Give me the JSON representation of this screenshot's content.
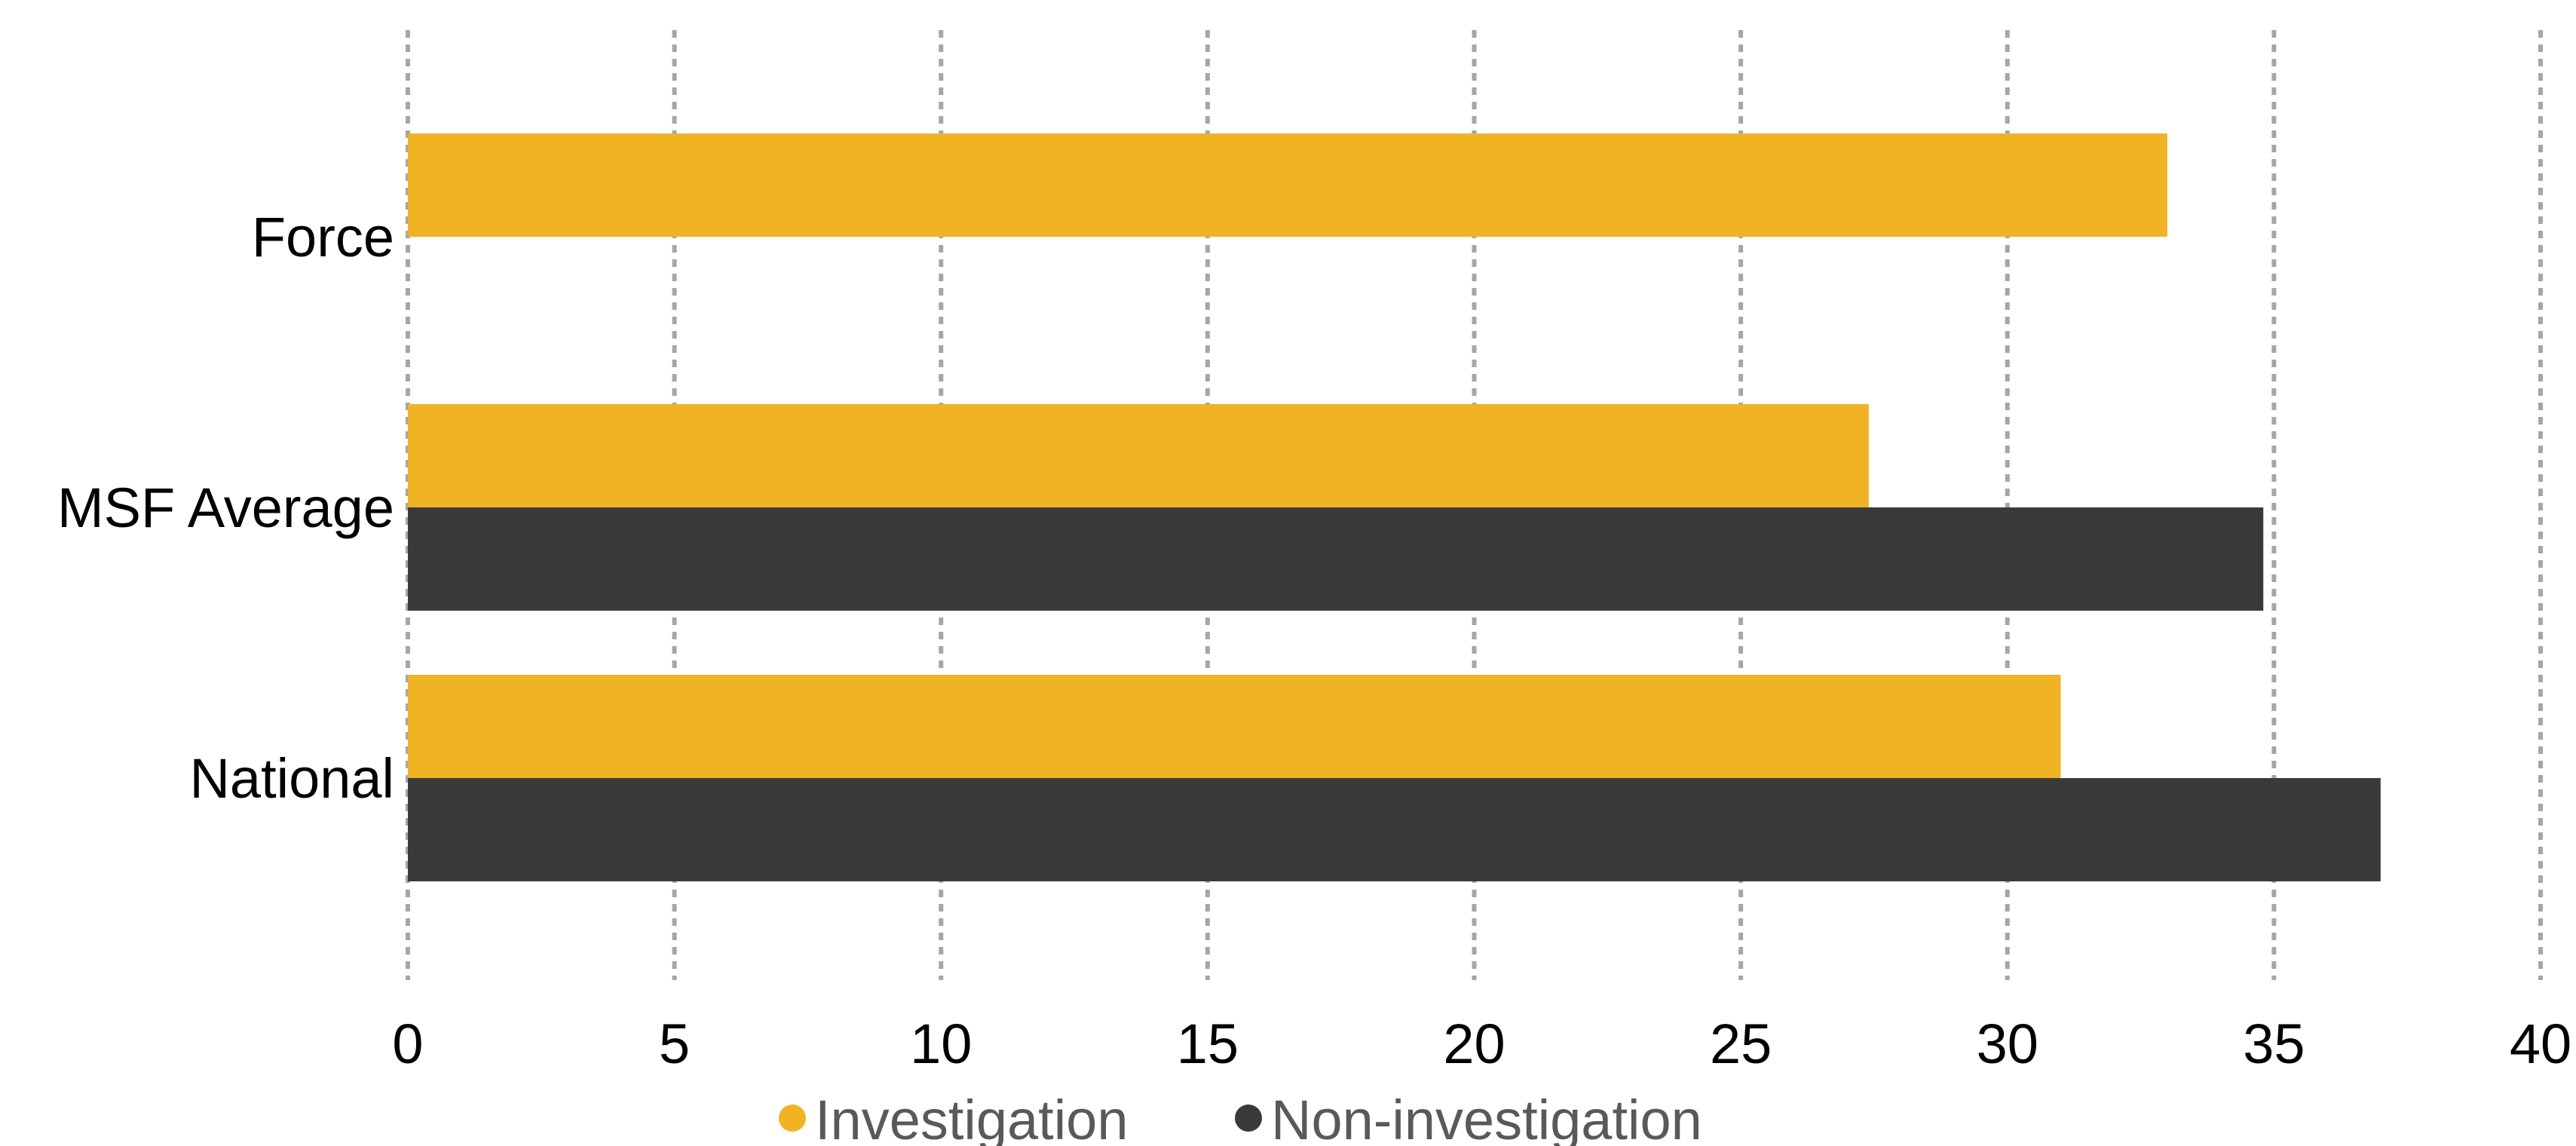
{
  "chart_data": {
    "type": "bar",
    "orientation": "horizontal",
    "categories": [
      "Force",
      "MSF Average",
      "National"
    ],
    "series": [
      {
        "name": "Investigation",
        "values": [
          33.0,
          27.4,
          31.0
        ],
        "color": "#EFB324"
      },
      {
        "name": "Non-investigation",
        "values": [
          null,
          34.8,
          37.0
        ],
        "color": "#3A3B38"
      }
    ],
    "xlim": [
      0,
      40
    ],
    "x_ticks": [
      "0",
      "5",
      "10",
      "15",
      "20",
      "25",
      "30",
      "35",
      "40"
    ],
    "grid": "vertical dotted",
    "grid_color": "#A6A6A6",
    "legend_position": "bottom-center",
    "legend_text_color": "#595959",
    "title": "",
    "xlabel": "",
    "ylabel": ""
  }
}
